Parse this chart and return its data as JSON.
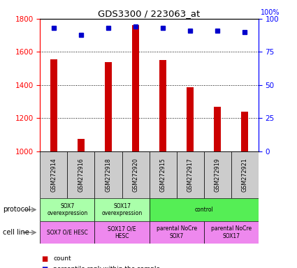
{
  "title": "GDS3300 / 223063_at",
  "samples": [
    "GSM272914",
    "GSM272916",
    "GSM272918",
    "GSM272920",
    "GSM272915",
    "GSM272917",
    "GSM272919",
    "GSM272921"
  ],
  "counts": [
    1557,
    1075,
    1540,
    1760,
    1553,
    1385,
    1270,
    1240
  ],
  "percentiles": [
    93,
    88,
    93,
    94,
    93,
    91,
    91,
    90
  ],
  "ylim_left": [
    1000,
    1800
  ],
  "ylim_right": [
    0,
    100
  ],
  "yticks_left": [
    1000,
    1200,
    1400,
    1600,
    1800
  ],
  "yticks_right": [
    0,
    25,
    50,
    75,
    100
  ],
  "bar_color": "#cc0000",
  "dot_color": "#0000cc",
  "bar_width": 0.25,
  "protocol_labels": [
    {
      "text": "SOX7\noverexpression",
      "cols": [
        0,
        1
      ],
      "color": "#aaffaa"
    },
    {
      "text": "SOX17\noverexpression",
      "cols": [
        2,
        3
      ],
      "color": "#aaffaa"
    },
    {
      "text": "control",
      "cols": [
        4,
        5,
        6,
        7
      ],
      "color": "#55ee55"
    }
  ],
  "cellline_labels": [
    {
      "text": "SOX7 O/E HESC",
      "cols": [
        0,
        1
      ],
      "color": "#ee88ee"
    },
    {
      "text": "SOX17 O/E\nHESC",
      "cols": [
        2,
        3
      ],
      "color": "#ee88ee"
    },
    {
      "text": "parental NoCre\nSOX7",
      "cols": [
        4,
        5
      ],
      "color": "#ee88ee"
    },
    {
      "text": "parental NoCre\nSOX17",
      "cols": [
        6,
        7
      ],
      "color": "#ee88ee"
    }
  ],
  "sample_bg_color": "#cccccc",
  "legend_count_color": "#cc0000",
  "legend_dot_color": "#0000cc"
}
